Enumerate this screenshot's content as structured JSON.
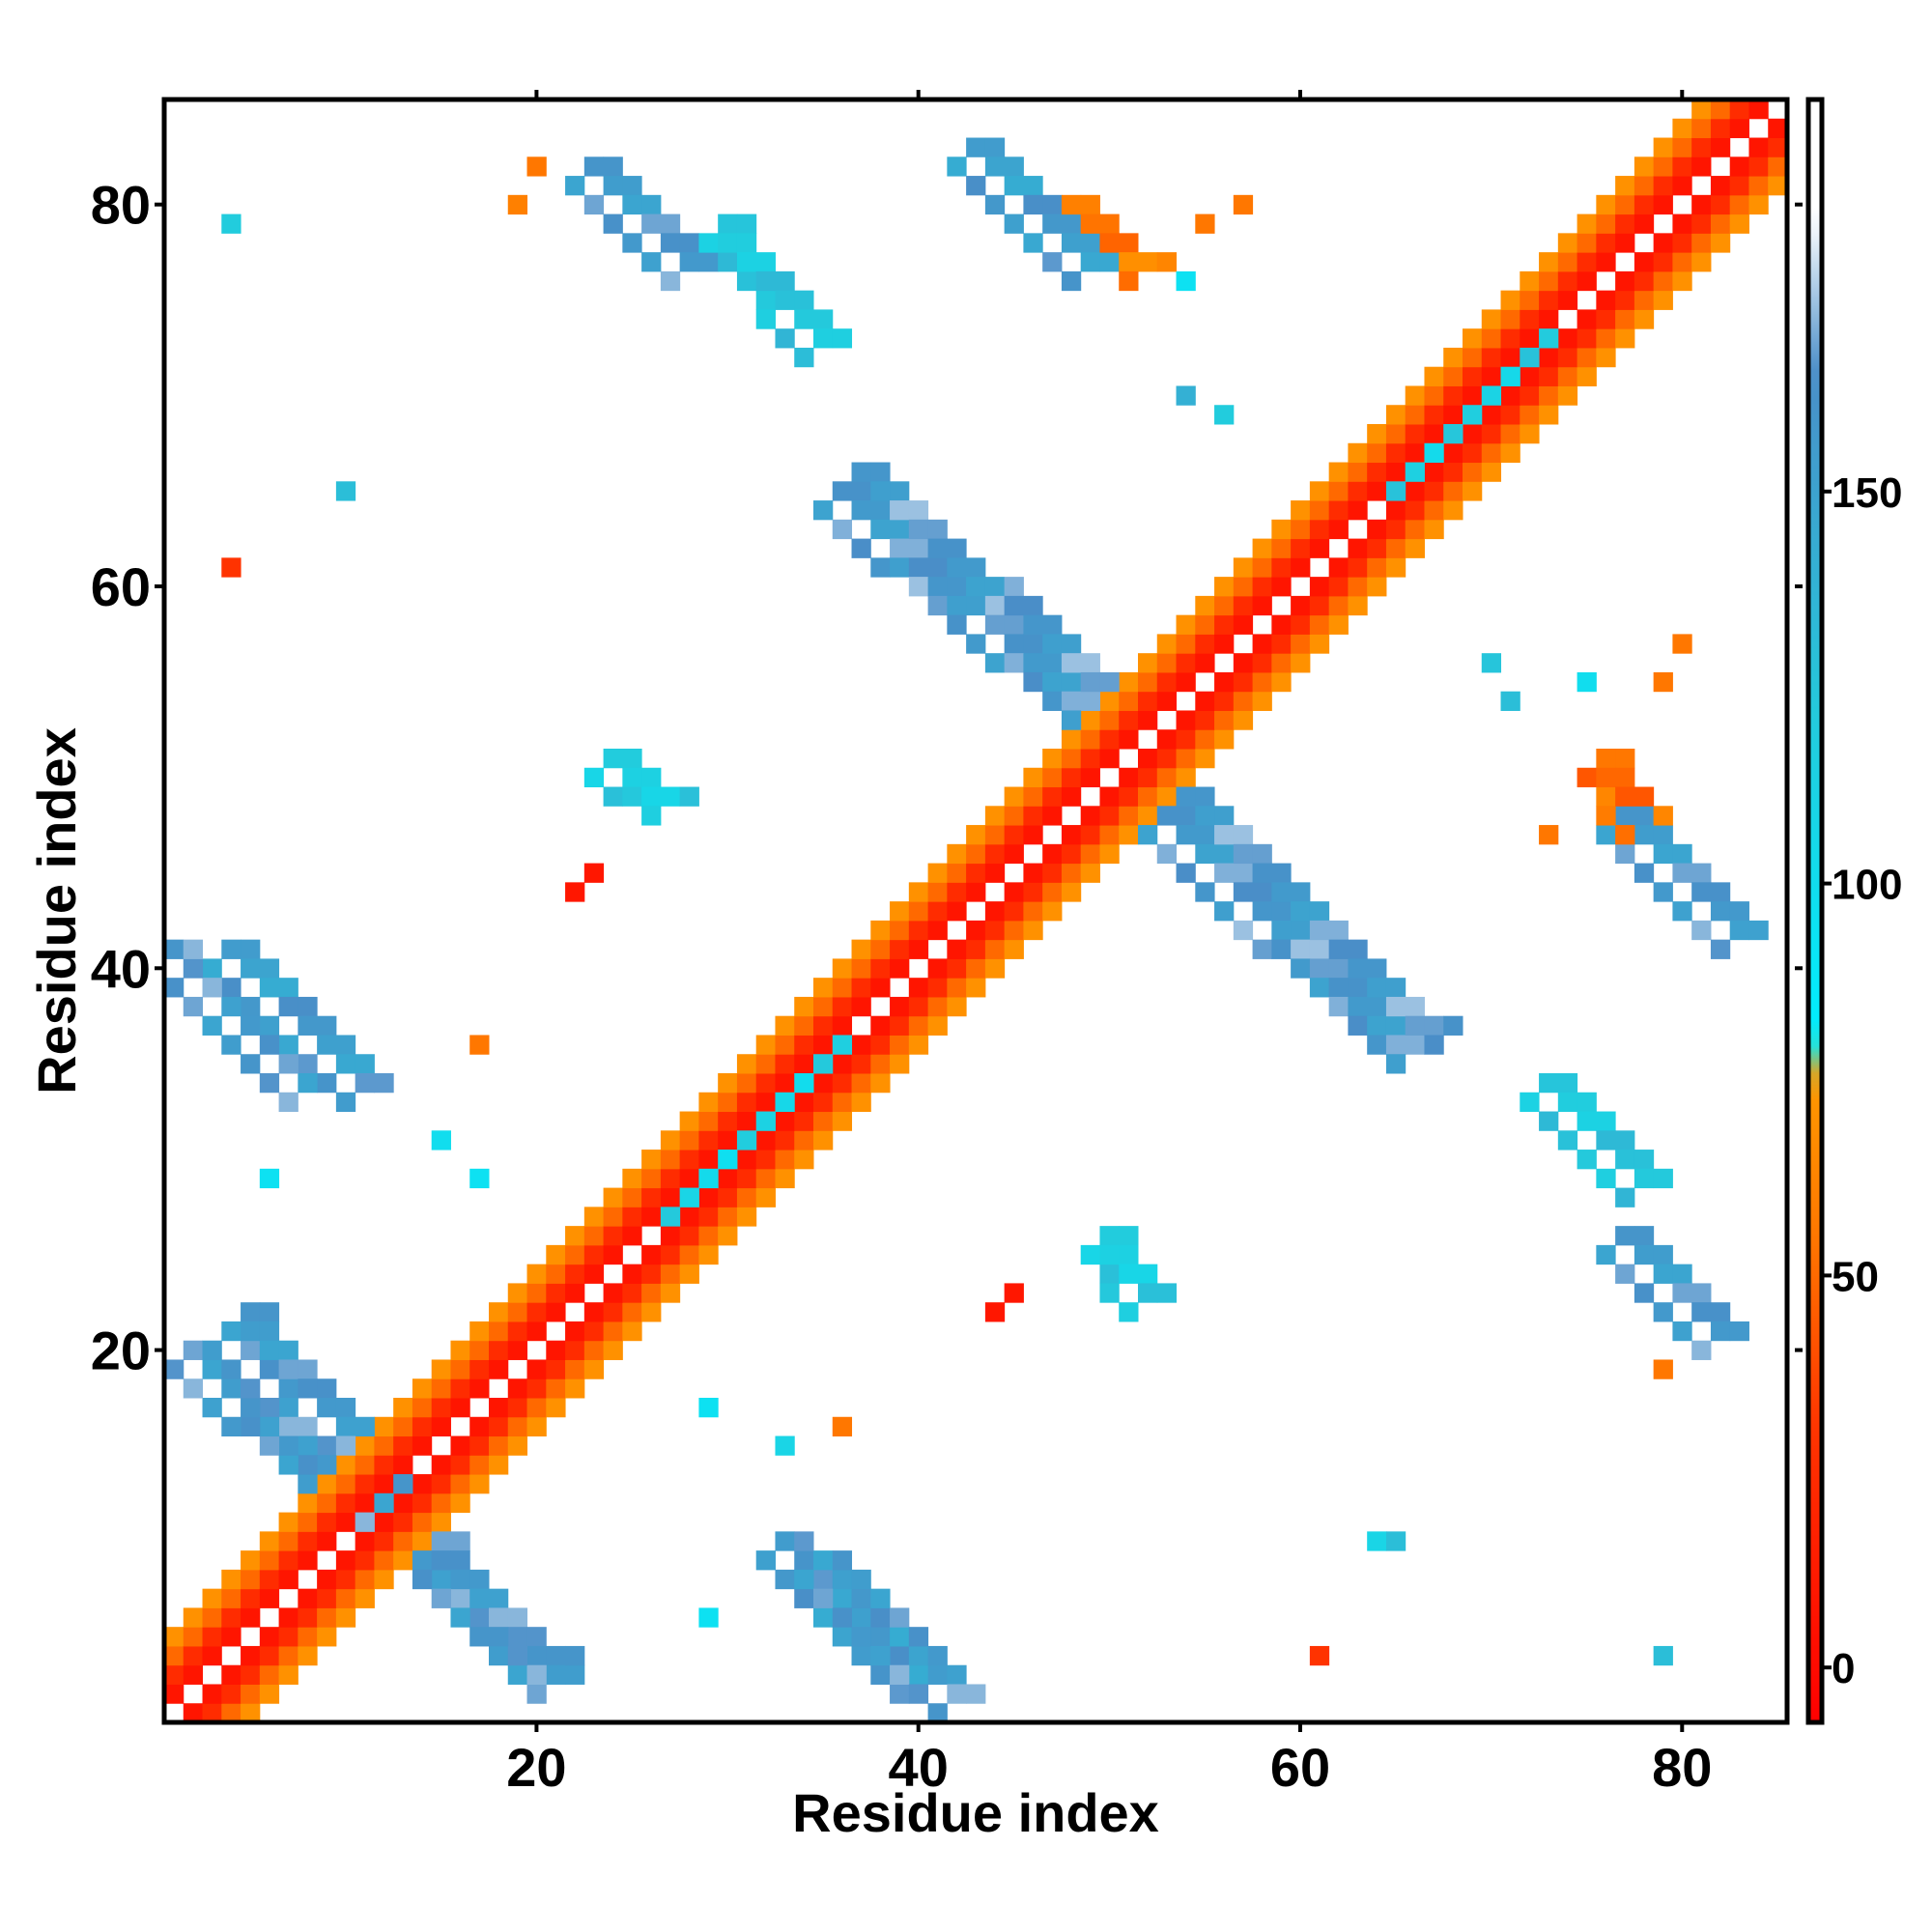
{
  "chart_data": {
    "type": "heatmap",
    "xlabel": "Residue index",
    "ylabel": "Residue index",
    "xlim": [
      1,
      85
    ],
    "ylim": [
      1,
      85
    ],
    "xticks": [
      20,
      40,
      60,
      80
    ],
    "yticks": [
      20,
      40,
      60,
      80
    ],
    "colorbar": {
      "range": [
        -7,
        200
      ],
      "ticks": [
        0,
        50,
        100,
        150
      ],
      "stops": [
        {
          "value": -7,
          "color": "#ff0000"
        },
        {
          "value": 30,
          "color": "#ff3300"
        },
        {
          "value": 55,
          "color": "#ff7700"
        },
        {
          "value": 75,
          "color": "#ff9900"
        },
        {
          "value": 80,
          "color": "#00eeff"
        },
        {
          "value": 120,
          "color": "#22ccdd"
        },
        {
          "value": 165,
          "color": "#4a8ec8"
        },
        {
          "value": 185,
          "color": "#ffffff"
        }
      ]
    },
    "bands": [
      {
        "name": "near-diagonal",
        "kind": "diagonal",
        "from": [
          1,
          1
        ],
        "to": [
          85,
          85
        ],
        "offsets": [
          1,
          2,
          3,
          4
        ],
        "values": [
          8,
          25,
          50,
          70
        ]
      },
      {
        "name": "anti-parallel-1",
        "kind": "segment",
        "from": [
          4,
          21
        ],
        "to": [
          20,
          2
        ],
        "width": 3,
        "value": 160
      },
      {
        "name": "anti-parallel-1-mirror",
        "kind": "segment",
        "from": [
          21,
          4
        ],
        "to": [
          2,
          20
        ],
        "width": 3,
        "value": 160
      },
      {
        "name": "sheet-5-38",
        "kind": "segment",
        "from": [
          3,
          40
        ],
        "to": [
          10,
          33
        ],
        "width": 3,
        "value": 155
      },
      {
        "name": "sheet-5-38-mirror",
        "kind": "segment",
        "from": [
          40,
          3
        ],
        "to": [
          33,
          10
        ],
        "width": 3,
        "value": 155
      },
      {
        "name": "sheet-35-3",
        "kind": "segment",
        "from": [
          34,
          8
        ],
        "to": [
          41,
          1
        ],
        "width": 3,
        "value": 160
      },
      {
        "name": "sheet-35-3-mirror",
        "kind": "segment",
        "from": [
          8,
          34
        ],
        "to": [
          1,
          41
        ],
        "width": 3,
        "value": 160
      },
      {
        "name": "sheet-22-80",
        "kind": "segment",
        "from": [
          22,
          81
        ],
        "to": [
          27,
          76
        ],
        "width": 3,
        "value": 160
      },
      {
        "name": "sheet-30-76",
        "kind": "segment",
        "from": [
          29,
          78
        ],
        "to": [
          34,
          72
        ],
        "width": 3,
        "value": 125
      },
      {
        "name": "sheet-42-82",
        "kind": "segment",
        "from": [
          42,
          82
        ],
        "to": [
          48,
          76
        ],
        "width": 3,
        "value": 155
      },
      {
        "name": "sheet-47-80",
        "kind": "segment",
        "from": [
          47,
          79
        ],
        "to": [
          51,
          76
        ],
        "width": 2,
        "value": 60
      },
      {
        "name": "anti-parallel-mid",
        "kind": "segment",
        "from": [
          35,
          64
        ],
        "to": [
          48,
          53
        ],
        "width": 4,
        "value": 162
      },
      {
        "name": "anti-parallel-mid-mirror",
        "kind": "segment",
        "from": [
          52,
          47
        ],
        "to": [
          65,
          35
        ],
        "width": 4,
        "value": 162
      },
      {
        "name": "sheet-76-47",
        "kind": "segment",
        "from": [
          76,
          47
        ],
        "to": [
          82,
          41
        ],
        "width": 3,
        "value": 160
      },
      {
        "name": "sheet-72-33",
        "kind": "segment",
        "from": [
          72,
          33
        ],
        "to": [
          77,
          28
        ],
        "width": 3,
        "value": 125
      },
      {
        "name": "sheet-76-25",
        "kind": "segment",
        "from": [
          76,
          25
        ],
        "to": [
          81,
          20
        ],
        "width": 3,
        "value": 160
      },
      {
        "name": "helix-block-28",
        "kind": "segment",
        "from": [
          26,
          28
        ],
        "to": [
          34,
          36
        ],
        "width": 3,
        "value": 110
      },
      {
        "name": "helix-block-63",
        "kind": "segment",
        "from": [
          64,
          66
        ],
        "to": [
          72,
          73
        ],
        "width": 3,
        "value": 115
      },
      {
        "name": "blob-24-49",
        "kind": "segment",
        "from": [
          23,
          50
        ],
        "to": [
          26,
          48
        ],
        "width": 2,
        "value": 120
      },
      {
        "name": "blob-49-24",
        "kind": "segment",
        "from": [
          49,
          25
        ],
        "to": [
          51,
          22
        ],
        "width": 2,
        "value": 120
      },
      {
        "name": "blob-77-50",
        "kind": "segment",
        "from": [
          75,
          50
        ],
        "to": [
          77,
          47
        ],
        "width": 2,
        "value": 55
      }
    ],
    "points": [
      {
        "x": 4,
        "y": 79,
        "value": 120
      },
      {
        "x": 4,
        "y": 61,
        "value": 30
      },
      {
        "x": 10,
        "y": 65,
        "value": 130
      },
      {
        "x": 6,
        "y": 29,
        "value": 95
      },
      {
        "x": 17,
        "y": 29,
        "value": 95
      },
      {
        "x": 15,
        "y": 31,
        "value": 100
      },
      {
        "x": 29,
        "y": 17,
        "value": 95
      },
      {
        "x": 33,
        "y": 15,
        "value": 110
      },
      {
        "x": 36,
        "y": 16,
        "value": 55
      },
      {
        "x": 29,
        "y": 6,
        "value": 95
      },
      {
        "x": 22,
        "y": 44,
        "value": 10
      },
      {
        "x": 23,
        "y": 45,
        "value": 10
      },
      {
        "x": 44,
        "y": 22,
        "value": 10
      },
      {
        "x": 45,
        "y": 23,
        "value": 10
      },
      {
        "x": 54,
        "y": 76,
        "value": 95
      },
      {
        "x": 55,
        "y": 79,
        "value": 55
      },
      {
        "x": 57,
        "y": 80,
        "value": 55
      },
      {
        "x": 54,
        "y": 70,
        "value": 140
      },
      {
        "x": 56,
        "y": 69,
        "value": 120
      },
      {
        "x": 61,
        "y": 4,
        "value": 30
      },
      {
        "x": 64,
        "y": 10,
        "value": 110
      },
      {
        "x": 65,
        "y": 10,
        "value": 130
      },
      {
        "x": 79,
        "y": 4,
        "value": 130
      },
      {
        "x": 79,
        "y": 19,
        "value": 55
      },
      {
        "x": 81,
        "y": 20,
        "value": 55
      },
      {
        "x": 70,
        "y": 56,
        "value": 125
      },
      {
        "x": 71,
        "y": 54,
        "value": 130
      },
      {
        "x": 75,
        "y": 55,
        "value": 100
      },
      {
        "x": 79,
        "y": 55,
        "value": 55
      },
      {
        "x": 80,
        "y": 57,
        "value": 55
      },
      {
        "x": 73,
        "y": 47,
        "value": 55
      },
      {
        "x": 19,
        "y": 80,
        "value": 60
      },
      {
        "x": 20,
        "y": 82,
        "value": 55
      },
      {
        "x": 17,
        "y": 36,
        "value": 55
      }
    ]
  }
}
